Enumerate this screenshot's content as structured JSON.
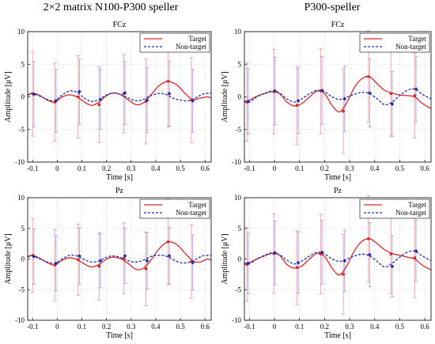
{
  "column_titles": [
    "2×2 matrix N100-P300 speller",
    "P300-speller"
  ],
  "chart_data": [
    {
      "type": "line",
      "title": "FCz",
      "xlabel": "Time [s]",
      "ylabel": "Amplitude [μV]",
      "xlim": [
        -0.12,
        0.625
      ],
      "ylim": [
        -10,
        10
      ],
      "xticks": [
        -0.1,
        0,
        0.1,
        0.2,
        0.3,
        0.4,
        0.5,
        0.6
      ],
      "xtick_labels": [
        "-0.1",
        "0",
        "0.1",
        "0.2",
        "0.3",
        "0.4",
        "0.5",
        "0.6"
      ],
      "yticks": [
        -10,
        -5,
        0,
        5,
        10
      ],
      "ytick_labels": [
        "-10",
        "-5",
        "0",
        "5",
        "10"
      ],
      "grid": true,
      "legend": "top-right",
      "series": [
        {
          "name": "Target",
          "color": "#d62728",
          "style": "solid",
          "x": [
            -0.12,
            -0.1,
            -0.07,
            -0.04,
            -0.01,
            0.02,
            0.05,
            0.08,
            0.11,
            0.14,
            0.17,
            0.2,
            0.23,
            0.26,
            0.29,
            0.32,
            0.35,
            0.38,
            0.41,
            0.44,
            0.46,
            0.49,
            0.52,
            0.55,
            0.58,
            0.61,
            0.625
          ],
          "y": [
            0.2,
            0.6,
            0.2,
            -0.5,
            -0.8,
            0.0,
            0.3,
            0.0,
            -0.8,
            -1.3,
            -0.8,
            0.2,
            0.6,
            0.3,
            -0.5,
            -1.2,
            -0.9,
            0.3,
            1.6,
            2.3,
            2.3,
            1.7,
            0.5,
            -0.4,
            -0.2,
            0.0,
            -0.2
          ],
          "markers": {
            "x": [
              -0.1,
              -0.01,
              0.085,
              0.17,
              0.27,
              0.36,
              0.45,
              0.545
            ],
            "y": [
              0.5,
              -0.8,
              0.0,
              -1.2,
              0.5,
              -0.7,
              2.4,
              -0.5
            ],
            "err": [
              6.5,
              6.0,
              6.3,
              5.8,
              6.0,
              6.5,
              7.0,
              6.5
            ]
          }
        },
        {
          "name": "Non-target",
          "color": "#1f2bb4",
          "style": "dashed",
          "x": [
            -0.12,
            -0.1,
            -0.07,
            -0.04,
            -0.01,
            0.02,
            0.05,
            0.08,
            0.11,
            0.14,
            0.17,
            0.2,
            0.23,
            0.26,
            0.29,
            0.32,
            0.35,
            0.38,
            0.41,
            0.44,
            0.47,
            0.5,
            0.53,
            0.56,
            0.59,
            0.625
          ],
          "y": [
            0.3,
            0.5,
            0.1,
            -0.4,
            -0.6,
            0.3,
            0.9,
            0.7,
            -0.2,
            -0.7,
            -0.4,
            0.3,
            0.6,
            0.3,
            -0.2,
            -0.6,
            -0.4,
            0.2,
            0.5,
            0.4,
            -0.2,
            -0.5,
            -0.6,
            -0.2,
            0.4,
            0.6
          ],
          "markers": {
            "x": [
              -0.1,
              -0.01,
              0.085,
              0.17,
              0.27,
              0.36,
              0.45,
              0.545
            ],
            "y": [
              0.4,
              -0.6,
              0.8,
              -0.4,
              0.6,
              -0.5,
              0.5,
              -0.6
            ],
            "err": [
              5.0,
              4.8,
              5.0,
              4.6,
              4.8,
              5.0,
              5.0,
              4.8
            ]
          }
        }
      ]
    },
    {
      "type": "line",
      "title": "FCz",
      "xlabel": "Time [s]",
      "ylabel": "Amplitude [μV]",
      "xlim": [
        -0.12,
        0.625
      ],
      "ylim": [
        -10,
        10
      ],
      "xticks": [
        -0.1,
        0,
        0.1,
        0.2,
        0.3,
        0.4,
        0.5,
        0.6
      ],
      "xtick_labels": [
        "-0.1",
        "0",
        "0.1",
        "0.2",
        "0.3",
        "0.4",
        "0.5",
        "0.6"
      ],
      "yticks": [
        -10,
        -5,
        0,
        5,
        10
      ],
      "ytick_labels": [
        "-10",
        "-5",
        "0",
        "5",
        "10"
      ],
      "grid": true,
      "legend": "top-right",
      "series": [
        {
          "name": "Target",
          "color": "#d62728",
          "style": "solid",
          "x": [
            -0.12,
            -0.1,
            -0.07,
            -0.04,
            -0.01,
            0.02,
            0.05,
            0.08,
            0.11,
            0.14,
            0.17,
            0.2,
            0.23,
            0.26,
            0.29,
            0.32,
            0.35,
            0.38,
            0.41,
            0.44,
            0.47,
            0.5,
            0.53,
            0.56,
            0.59,
            0.625
          ],
          "y": [
            -0.8,
            -0.5,
            0.1,
            0.5,
            0.8,
            0.5,
            -0.8,
            -1.4,
            -1.0,
            0.0,
            0.9,
            0.5,
            -1.3,
            -2.3,
            -0.8,
            1.5,
            2.8,
            3.1,
            2.0,
            1.0,
            0.6,
            0.3,
            0.2,
            0.0,
            -1.0,
            -1.8
          ],
          "markers": {
            "x": [
              -0.11,
              -0.003,
              0.09,
              0.185,
              0.275,
              0.375,
              0.465,
              0.56
            ],
            "y": [
              -0.8,
              0.8,
              -1.3,
              0.9,
              -2.2,
              3.1,
              0.5,
              0.2
            ],
            "err": [
              6.0,
              6.5,
              6.0,
              6.5,
              6.5,
              7.0,
              6.5,
              6.5
            ]
          }
        },
        {
          "name": "Non-target",
          "color": "#1f2bb4",
          "style": "dashed",
          "x": [
            -0.12,
            -0.1,
            -0.07,
            -0.04,
            -0.01,
            0.02,
            0.05,
            0.08,
            0.11,
            0.14,
            0.17,
            0.2,
            0.23,
            0.26,
            0.29,
            0.32,
            0.35,
            0.38,
            0.41,
            0.44,
            0.47,
            0.5,
            0.53,
            0.56,
            0.59,
            0.625
          ],
          "y": [
            -0.6,
            -0.8,
            0.0,
            0.5,
            0.9,
            0.6,
            -0.3,
            -0.8,
            -0.3,
            0.5,
            1.0,
            0.8,
            0.0,
            -0.4,
            0.0,
            0.4,
            0.7,
            0.5,
            -0.3,
            -1.2,
            -0.8,
            0.2,
            1.0,
            1.2,
            0.4,
            -0.3
          ],
          "markers": {
            "x": [
              -0.11,
              -0.003,
              0.09,
              0.185,
              0.275,
              0.375,
              0.465,
              0.56
            ],
            "y": [
              -0.7,
              0.9,
              -0.6,
              1.0,
              -0.3,
              0.6,
              -1.1,
              1.2
            ],
            "err": [
              5.0,
              5.2,
              5.0,
              5.2,
              5.0,
              5.2,
              5.0,
              5.0
            ]
          }
        }
      ]
    },
    {
      "type": "line",
      "title": "Pz",
      "xlabel": "Time [s]",
      "ylabel": "Amplitude [μV]",
      "xlim": [
        -0.12,
        0.625
      ],
      "ylim": [
        -10,
        10
      ],
      "xticks": [
        -0.1,
        0,
        0.1,
        0.2,
        0.3,
        0.4,
        0.5,
        0.6
      ],
      "xtick_labels": [
        "-0.1",
        "0",
        "0.1",
        "0.2",
        "0.3",
        "0.4",
        "0.5",
        "0.6"
      ],
      "yticks": [
        -10,
        -5,
        0,
        5,
        10
      ],
      "ytick_labels": [
        "-10",
        "-5",
        "0",
        "5",
        "10"
      ],
      "grid": true,
      "legend": "top-right",
      "series": [
        {
          "name": "Target",
          "color": "#d62728",
          "style": "solid",
          "x": [
            -0.12,
            -0.1,
            -0.07,
            -0.04,
            -0.01,
            0.02,
            0.05,
            0.08,
            0.11,
            0.14,
            0.17,
            0.2,
            0.23,
            0.26,
            0.29,
            0.32,
            0.35,
            0.38,
            0.41,
            0.44,
            0.46,
            0.49,
            0.52,
            0.55,
            0.58,
            0.61,
            0.625
          ],
          "y": [
            0.3,
            0.6,
            0.1,
            -0.6,
            -1.0,
            -0.2,
            0.2,
            -0.1,
            -0.8,
            -1.3,
            -0.9,
            0.0,
            0.3,
            0.0,
            -0.8,
            -1.7,
            -1.5,
            -0.2,
            1.5,
            2.6,
            2.8,
            2.2,
            0.9,
            -0.3,
            -0.5,
            0.0,
            -0.2
          ],
          "markers": {
            "x": [
              -0.1,
              -0.01,
              0.085,
              0.17,
              0.27,
              0.36,
              0.45,
              0.545
            ],
            "y": [
              0.6,
              -1.0,
              -0.1,
              -1.2,
              0.1,
              -1.6,
              2.8,
              -0.4
            ],
            "err": [
              6.0,
              5.8,
              5.8,
              5.5,
              5.8,
              6.0,
              7.0,
              6.0
            ]
          }
        },
        {
          "name": "Non-target",
          "color": "#1f2bb4",
          "style": "dashed",
          "x": [
            -0.12,
            -0.1,
            -0.07,
            -0.04,
            -0.01,
            0.02,
            0.05,
            0.08,
            0.11,
            0.14,
            0.17,
            0.2,
            0.23,
            0.26,
            0.29,
            0.32,
            0.35,
            0.38,
            0.41,
            0.44,
            0.47,
            0.5,
            0.53,
            0.56,
            0.59,
            0.625
          ],
          "y": [
            0.4,
            0.5,
            0.0,
            -0.5,
            -0.7,
            0.0,
            0.6,
            0.5,
            -0.1,
            -0.5,
            -0.3,
            0.3,
            0.5,
            0.2,
            -0.3,
            -0.5,
            -0.2,
            0.4,
            0.6,
            0.5,
            -0.1,
            -0.6,
            -0.6,
            -0.1,
            0.5,
            0.6
          ],
          "markers": {
            "x": [
              -0.1,
              -0.01,
              0.085,
              0.17,
              0.27,
              0.36,
              0.45,
              0.545
            ],
            "y": [
              0.4,
              -0.7,
              0.5,
              -0.3,
              0.5,
              -0.3,
              0.5,
              -0.6
            ],
            "err": [
              4.5,
              4.5,
              4.6,
              4.4,
              4.5,
              4.6,
              4.6,
              4.5
            ]
          }
        }
      ]
    },
    {
      "type": "line",
      "title": "Pz",
      "xlabel": "Time [s]",
      "ylabel": "Amplitude [μV]",
      "xlim": [
        -0.12,
        0.625
      ],
      "ylim": [
        -10,
        10
      ],
      "xticks": [
        -0.1,
        0,
        0.1,
        0.2,
        0.3,
        0.4,
        0.5,
        0.6
      ],
      "xtick_labels": [
        "-0.1",
        "0",
        "0.1",
        "0.2",
        "0.3",
        "0.4",
        "0.5",
        "0.6"
      ],
      "yticks": [
        -10,
        -5,
        0,
        5,
        10
      ],
      "ytick_labels": [
        "-10",
        "-5",
        "0",
        "5",
        "10"
      ],
      "grid": true,
      "legend": "top-right",
      "series": [
        {
          "name": "Target",
          "color": "#d62728",
          "style": "solid",
          "x": [
            -0.12,
            -0.1,
            -0.07,
            -0.04,
            -0.01,
            0.02,
            0.05,
            0.08,
            0.11,
            0.14,
            0.17,
            0.2,
            0.23,
            0.26,
            0.29,
            0.32,
            0.35,
            0.38,
            0.41,
            0.44,
            0.47,
            0.5,
            0.53,
            0.56,
            0.59,
            0.625
          ],
          "y": [
            -0.9,
            -0.6,
            0.0,
            0.5,
            0.9,
            0.6,
            -0.9,
            -1.5,
            -1.1,
            0.0,
            0.9,
            0.4,
            -1.5,
            -2.6,
            -1.0,
            1.4,
            2.9,
            3.3,
            2.5,
            1.5,
            0.9,
            0.6,
            0.3,
            0.0,
            -1.0,
            -1.8
          ],
          "markers": {
            "x": [
              -0.11,
              -0.003,
              0.09,
              0.185,
              0.275,
              0.375,
              0.465,
              0.56
            ],
            "y": [
              -0.9,
              0.9,
              -1.4,
              0.8,
              -2.5,
              3.3,
              0.8,
              0.2
            ],
            "err": [
              6.0,
              6.5,
              6.0,
              6.5,
              6.5,
              7.0,
              6.5,
              6.5
            ]
          }
        },
        {
          "name": "Non-target",
          "color": "#1f2bb4",
          "style": "dashed",
          "x": [
            -0.12,
            -0.1,
            -0.07,
            -0.04,
            -0.01,
            0.02,
            0.05,
            0.08,
            0.11,
            0.14,
            0.17,
            0.2,
            0.23,
            0.26,
            0.29,
            0.32,
            0.35,
            0.38,
            0.41,
            0.44,
            0.47,
            0.5,
            0.53,
            0.56,
            0.59,
            0.625
          ],
          "y": [
            -0.6,
            -0.8,
            0.0,
            0.6,
            1.0,
            0.7,
            -0.2,
            -0.8,
            -0.3,
            0.5,
            1.1,
            0.8,
            0.0,
            -0.4,
            0.0,
            0.5,
            0.8,
            0.5,
            -0.4,
            -1.3,
            -0.7,
            0.3,
            1.1,
            1.3,
            0.5,
            -0.3
          ],
          "markers": {
            "x": [
              -0.11,
              -0.003,
              0.09,
              0.185,
              0.275,
              0.375,
              0.465,
              0.56
            ],
            "y": [
              -0.7,
              1.0,
              -0.6,
              1.1,
              -0.3,
              0.7,
              -1.2,
              1.3
            ],
            "err": [
              5.0,
              5.2,
              5.0,
              5.2,
              5.0,
              5.2,
              5.0,
              5.0
            ]
          }
        }
      ]
    }
  ]
}
